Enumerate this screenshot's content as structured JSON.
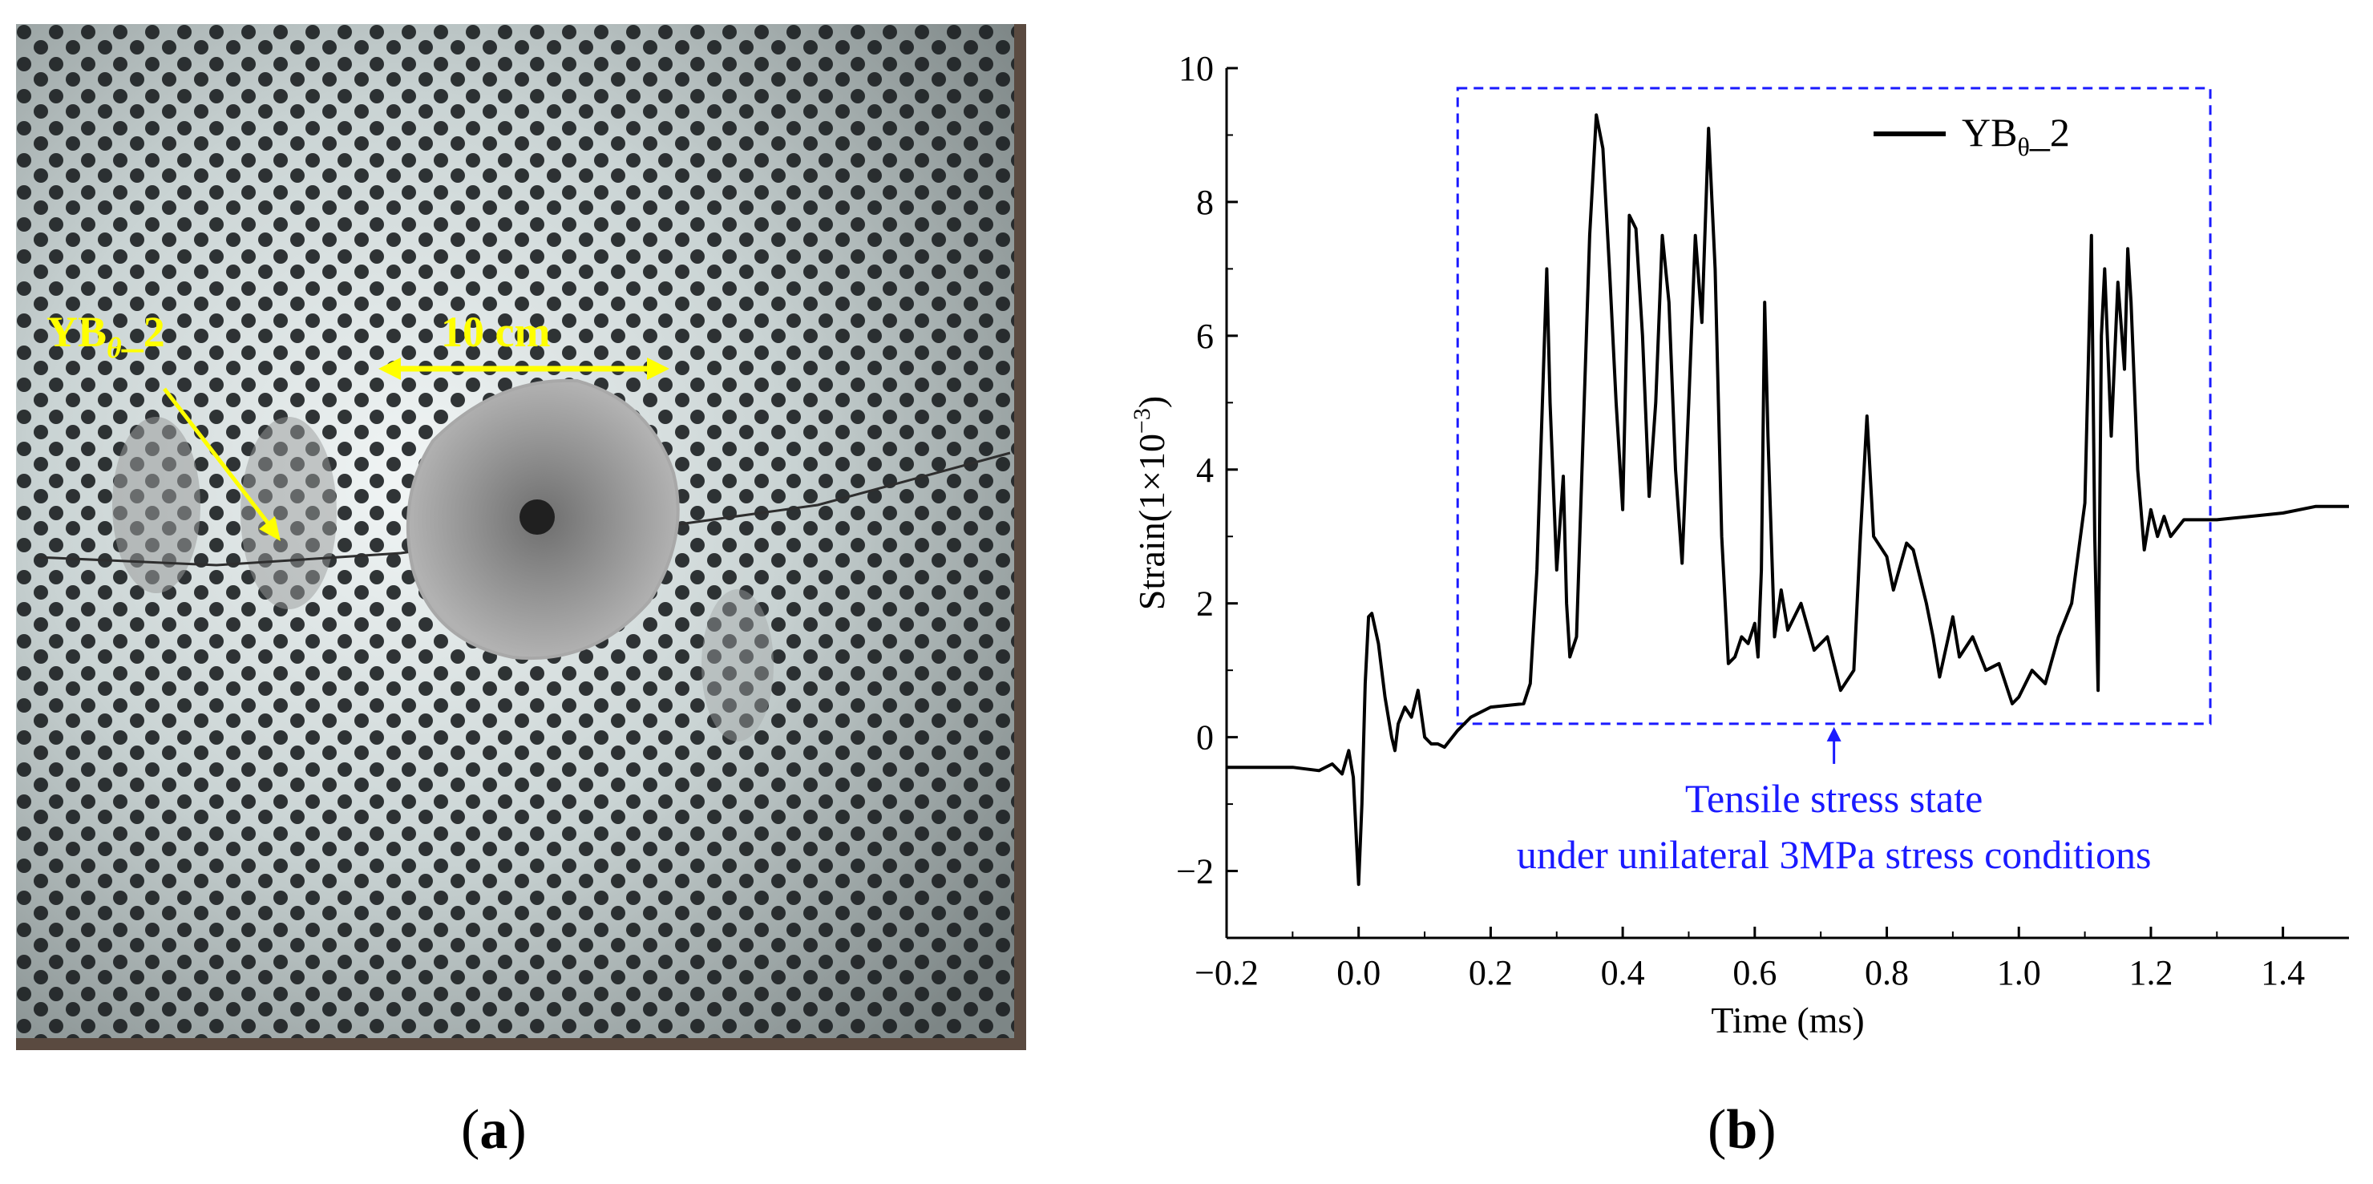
{
  "panels": {
    "a": {
      "paren_open": "(",
      "letter": "a",
      "paren_close": ")"
    },
    "b": {
      "paren_open": "(",
      "letter": "b",
      "paren_close": ")"
    }
  },
  "photo": {
    "gauge_label_main": "YB",
    "gauge_label_sub": "θ",
    "gauge_label_suffix": "_2",
    "scale_label": "10 cm",
    "annotation_color": "#ffff00"
  },
  "chart_data": {
    "type": "line",
    "xlabel": "Time (ms)",
    "ylabel_main": "Strain(1×10",
    "ylabel_exp": "−3",
    "ylabel_close": ")",
    "xlim": [
      -0.2,
      1.5
    ],
    "ylim": [
      -3,
      10
    ],
    "xticks": [
      -0.2,
      0.0,
      0.2,
      0.4,
      0.6,
      0.8,
      1.0,
      1.2,
      1.4
    ],
    "xtick_labels": [
      "−0.2",
      "0.0",
      "0.2",
      "0.4",
      "0.6",
      "0.8",
      "1.0",
      "1.2",
      "1.4"
    ],
    "yticks": [
      -2,
      0,
      2,
      4,
      6,
      8,
      10
    ],
    "ytick_labels": [
      "−2",
      "0",
      "2",
      "4",
      "6",
      "8",
      "10"
    ],
    "legend": {
      "main": "YB",
      "sub": "θ",
      "suffix": "_2",
      "position": "top-right"
    },
    "annotation": {
      "line1": "Tensile stress state",
      "line2": "under unilateral 3MPa stress conditions",
      "color": "#1a1aff",
      "box_x": [
        0.15,
        1.29
      ],
      "box_y": [
        0.2,
        9.7
      ]
    },
    "series": [
      {
        "name": "YBθ_2",
        "color": "#000000",
        "points": [
          [
            -0.2,
            -0.45
          ],
          [
            -0.15,
            -0.45
          ],
          [
            -0.1,
            -0.45
          ],
          [
            -0.06,
            -0.5
          ],
          [
            -0.04,
            -0.4
          ],
          [
            -0.025,
            -0.55
          ],
          [
            -0.015,
            -0.2
          ],
          [
            -0.008,
            -0.6
          ],
          [
            -0.003,
            -1.6
          ],
          [
            0.0,
            -2.2
          ],
          [
            0.005,
            -1.0
          ],
          [
            0.01,
            0.8
          ],
          [
            0.015,
            1.8
          ],
          [
            0.02,
            1.85
          ],
          [
            0.03,
            1.4
          ],
          [
            0.04,
            0.6
          ],
          [
            0.05,
            0.0
          ],
          [
            0.055,
            -0.2
          ],
          [
            0.06,
            0.2
          ],
          [
            0.07,
            0.45
          ],
          [
            0.08,
            0.3
          ],
          [
            0.09,
            0.7
          ],
          [
            0.1,
            0.0
          ],
          [
            0.11,
            -0.1
          ],
          [
            0.12,
            -0.1
          ],
          [
            0.13,
            -0.15
          ],
          [
            0.15,
            0.1
          ],
          [
            0.17,
            0.3
          ],
          [
            0.2,
            0.45
          ],
          [
            0.25,
            0.5
          ],
          [
            0.26,
            0.8
          ],
          [
            0.27,
            2.5
          ],
          [
            0.28,
            5.5
          ],
          [
            0.285,
            7.0
          ],
          [
            0.29,
            5.0
          ],
          [
            0.3,
            2.5
          ],
          [
            0.31,
            3.9
          ],
          [
            0.315,
            2.0
          ],
          [
            0.32,
            1.2
          ],
          [
            0.33,
            1.5
          ],
          [
            0.34,
            4.5
          ],
          [
            0.35,
            7.5
          ],
          [
            0.36,
            9.3
          ],
          [
            0.37,
            8.8
          ],
          [
            0.38,
            7.0
          ],
          [
            0.39,
            5.0
          ],
          [
            0.4,
            3.4
          ],
          [
            0.41,
            7.8
          ],
          [
            0.42,
            7.6
          ],
          [
            0.43,
            6.0
          ],
          [
            0.44,
            3.6
          ],
          [
            0.45,
            5.0
          ],
          [
            0.46,
            7.5
          ],
          [
            0.47,
            6.5
          ],
          [
            0.48,
            4.0
          ],
          [
            0.49,
            2.6
          ],
          [
            0.5,
            5.0
          ],
          [
            0.51,
            7.5
          ],
          [
            0.52,
            6.2
          ],
          [
            0.53,
            9.1
          ],
          [
            0.54,
            7.0
          ],
          [
            0.55,
            3.0
          ],
          [
            0.56,
            1.1
          ],
          [
            0.57,
            1.2
          ],
          [
            0.58,
            1.5
          ],
          [
            0.59,
            1.4
          ],
          [
            0.6,
            1.7
          ],
          [
            0.605,
            1.2
          ],
          [
            0.61,
            2.5
          ],
          [
            0.615,
            6.5
          ],
          [
            0.62,
            4.5
          ],
          [
            0.63,
            1.5
          ],
          [
            0.64,
            2.2
          ],
          [
            0.65,
            1.6
          ],
          [
            0.67,
            2.0
          ],
          [
            0.69,
            1.3
          ],
          [
            0.71,
            1.5
          ],
          [
            0.73,
            0.7
          ],
          [
            0.75,
            1.0
          ],
          [
            0.76,
            3.0
          ],
          [
            0.77,
            4.8
          ],
          [
            0.78,
            3.0
          ],
          [
            0.8,
            2.7
          ],
          [
            0.81,
            2.2
          ],
          [
            0.83,
            2.9
          ],
          [
            0.84,
            2.8
          ],
          [
            0.86,
            2.0
          ],
          [
            0.87,
            1.5
          ],
          [
            0.88,
            0.9
          ],
          [
            0.9,
            1.8
          ],
          [
            0.91,
            1.2
          ],
          [
            0.93,
            1.5
          ],
          [
            0.95,
            1.0
          ],
          [
            0.97,
            1.1
          ],
          [
            0.99,
            0.5
          ],
          [
            1.0,
            0.6
          ],
          [
            1.02,
            1.0
          ],
          [
            1.04,
            0.8
          ],
          [
            1.06,
            1.5
          ],
          [
            1.08,
            2.0
          ],
          [
            1.1,
            3.5
          ],
          [
            1.11,
            7.5
          ],
          [
            1.115,
            3.0
          ],
          [
            1.12,
            0.7
          ],
          [
            1.125,
            6.0
          ],
          [
            1.13,
            7.0
          ],
          [
            1.14,
            4.5
          ],
          [
            1.15,
            6.8
          ],
          [
            1.16,
            5.5
          ],
          [
            1.165,
            7.3
          ],
          [
            1.17,
            6.5
          ],
          [
            1.18,
            4.0
          ],
          [
            1.19,
            2.8
          ],
          [
            1.2,
            3.4
          ],
          [
            1.21,
            3.0
          ],
          [
            1.22,
            3.3
          ],
          [
            1.23,
            3.0
          ],
          [
            1.25,
            3.25
          ],
          [
            1.3,
            3.25
          ],
          [
            1.35,
            3.3
          ],
          [
            1.4,
            3.35
          ],
          [
            1.45,
            3.45
          ],
          [
            1.5,
            3.45
          ]
        ]
      }
    ]
  }
}
